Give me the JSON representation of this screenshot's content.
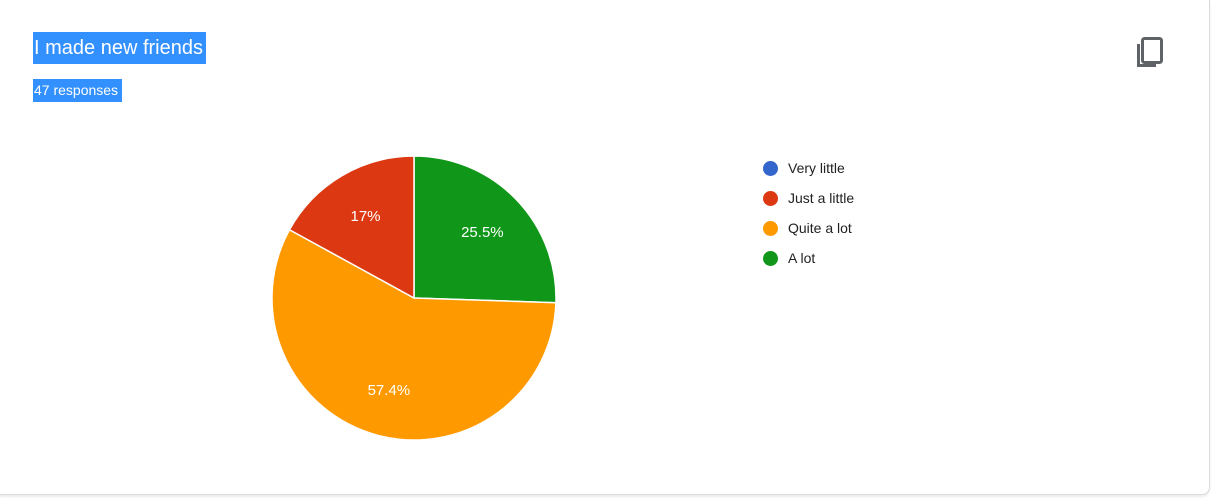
{
  "question": {
    "title": "I made new friends",
    "responses": "47 responses"
  },
  "icons": {
    "copy": "copy-icon"
  },
  "chart_data": {
    "type": "pie",
    "categories": [
      "Very little",
      "Just a little",
      "Quite a lot",
      "A lot"
    ],
    "values": [
      0,
      17,
      57.4,
      25.5
    ],
    "labels": [
      "",
      "17%",
      "57.4%",
      "25.5%"
    ],
    "colors": [
      "#3366cc",
      "#dc3912",
      "#ff9900",
      "#109618"
    ],
    "legend_position": "right"
  }
}
